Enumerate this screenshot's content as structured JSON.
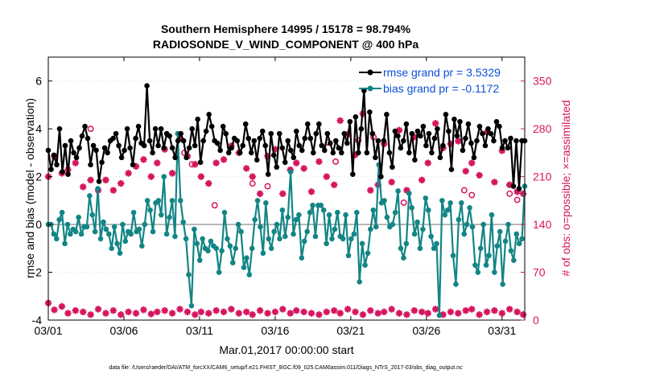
{
  "chart_data": {
    "type": "line",
    "title": "Southern Hemisphere 14995 / 15178 = 98.794%",
    "subtitle": "RADIOSONDE_V_WIND_COMPONENT @ 400 hPa",
    "xlabel": "Mar.01,2017 00:00:00 start",
    "ylabel": "rmse and bias (model - observation)",
    "y2label": "# of obs: o=possible; ×=assimilated",
    "footnote": "data file: /Users/raeder/DAI/ATM_forcXX/CAM6_setup/f.e21.FHIST_BGC.f09_025.CAM6assim.011/Diags_NTrS_2017-03/obs_diag_output.nc",
    "xlim": [
      0,
      31.5
    ],
    "ylim": [
      -4,
      7
    ],
    "y2lim": [
      0,
      385
    ],
    "xticks": [
      0,
      5,
      10,
      15,
      20,
      25,
      30
    ],
    "xtick_labels": [
      "03/01",
      "03/06",
      "03/11",
      "03/16",
      "03/21",
      "03/26",
      "03/31"
    ],
    "yticks": [
      -4,
      -2,
      0,
      2,
      4,
      6
    ],
    "ytick_labels": [
      "-4",
      "-2",
      "0",
      "2",
      "4",
      "6"
    ],
    "y2ticks": [
      0,
      70,
      140,
      210,
      280,
      350
    ],
    "y2tick_labels": [
      "0",
      "70",
      "140",
      "210",
      "280",
      "350"
    ],
    "legend_position": "top-right",
    "colors": {
      "rmse": "#000000",
      "bias": "#138585",
      "obs": "#d6155e",
      "zero_line": "#a0a0a0"
    },
    "series": [
      {
        "name": "rmse grand pr = 3.5329",
        "values": [
          3.1,
          2.3,
          2.9,
          2.5,
          4.0,
          2.2,
          3.3,
          2.1,
          3.5,
          3.0,
          2.8,
          3.2,
          3.7,
          4.1,
          3.6,
          2.5,
          3.3,
          3.1,
          1.8,
          2.6,
          3.2,
          3.0,
          3.5,
          3.6,
          3.8,
          3.3,
          2.8,
          3.1,
          4.0,
          3.2,
          2.5,
          3.6,
          4.1,
          3.4,
          3.3,
          5.8,
          3.5,
          3.0,
          4.0,
          3.3,
          4.0,
          3.2,
          3.8,
          3.7,
          3.2,
          2.8,
          3.5,
          3.8,
          3.5,
          2.8,
          3.2,
          4.0,
          3.3,
          4.4,
          2.6,
          3.5,
          3.9,
          4.6,
          4.1,
          3.5,
          3.4,
          3.1,
          4.1,
          3.8,
          3.0,
          3.2,
          3.6,
          3.5,
          3.0,
          3.3,
          4.2,
          3.6,
          3.0,
          3.5,
          2.7,
          3.6,
          3.9,
          3.3,
          2.1,
          3.8,
          2.9,
          2.4,
          3.8,
          3.2,
          2.6,
          3.5,
          3.1,
          2.8,
          3.9,
          3.3,
          3.1,
          3.6,
          4.2,
          3.6,
          3.0,
          3.8,
          4.2,
          3.3,
          3.1,
          3.8,
          3.4,
          3.0,
          3.5,
          3.2,
          3.0,
          3.8,
          3.4,
          4.3,
          2.1,
          4.5,
          3.0,
          4.0,
          5.6,
          3.0,
          4.7,
          3.8,
          2.8,
          3.5,
          2.0,
          3.5,
          4.6,
          3.0,
          2.4,
          3.9,
          3.7,
          3.2,
          3.5,
          4.2,
          3.0,
          3.8,
          2.7,
          3.9,
          3.7,
          4.1,
          3.3,
          3.8,
          3.0,
          3.6,
          4.0,
          2.8,
          3.3,
          4.6,
          3.9,
          2.3,
          4.4,
          3.7,
          4.3,
          3.1,
          3.6,
          4.2,
          3.4,
          2.8,
          3.5,
          4.1,
          3.8,
          3.3,
          4.0,
          3.8,
          3.5,
          4.3,
          4.1,
          3.2,
          3.5,
          3.2,
          3.6,
          1.6,
          3.5,
          1.5,
          3.5,
          3.5
        ]
      },
      {
        "name": "bias grand pr = -0.1172",
        "values": [
          0.0,
          0.0,
          -0.4,
          -0.6,
          0.2,
          0.5,
          -0.8,
          0.0,
          -0.4,
          -0.2,
          -0.3,
          0.3,
          -0.4,
          -0.1,
          -0.1,
          1.2,
          0.4,
          -0.3,
          1.5,
          -0.6,
          0.1,
          -0.2,
          -0.4,
          -1.0,
          -0.1,
          -0.8,
          -1.2,
          0.0,
          -0.7,
          -0.3,
          -0.4,
          0.5,
          -0.3,
          -0.2,
          -0.9,
          0.0,
          1.0,
          0.6,
          -0.3,
          0.9,
          1.0,
          0.4,
          2.0,
          -0.4,
          0.3,
          1.0,
          -0.5,
          3.8,
          1.0,
          0.1,
          -0.6,
          -2.1,
          -3.4,
          -0.2,
          -0.8,
          -1.5,
          -0.6,
          -1.0,
          -1.1,
          -0.7,
          -0.9,
          -1.0,
          -2.0,
          -1.1,
          0.5,
          -0.6,
          -0.9,
          -1.6,
          -1.0,
          0.0,
          -0.3,
          -1.8,
          -1.4,
          -2.1,
          -1.0,
          0.2,
          1.0,
          -0.1,
          -1.2,
          0.9,
          -0.6,
          -1.0,
          -0.3,
          0.0,
          -0.6,
          0.6,
          -0.5,
          0.3,
          2.2,
          -0.4,
          0.2,
          0.4,
          -1.4,
          -0.7,
          -0.3,
          0.5,
          0.8,
          -0.5,
          0.8,
          0.8,
          0.6,
          -0.8,
          0.4,
          -0.6,
          -0.2,
          0.5,
          -0.5,
          -0.6,
          0.4,
          -1.3,
          -0.6,
          -0.4,
          0.5,
          -2.4,
          -0.8,
          -1.7,
          -1.2,
          -0.2,
          0.6,
          -0.1,
          2.5,
          0.9,
          1.0,
          0.3,
          -0.1,
          0.0,
          0.5,
          1.4,
          -1.0,
          -1.4,
          -0.8,
          1.3,
          0.7,
          -0.4,
          0.1,
          -1.0,
          -0.2,
          1.1,
          0.6,
          -0.5,
          -1.0,
          -0.8,
          -3.8,
          1.0,
          0.4,
          0.6,
          0.9,
          -1.3,
          -2.5,
          0.2,
          0.9,
          -0.4,
          0.0,
          0.7,
          -0.1,
          -1.7,
          -2.0,
          -1.0,
          0.0,
          -1.7,
          -1.3,
          0.4,
          -2.0,
          -0.9,
          -0.3,
          -2.5,
          -0.7,
          0.0,
          -1.1,
          -1.5,
          -0.4,
          -0.8,
          -0.6,
          1.6
        ]
      }
    ],
    "obs_possible_series": {
      "x": [
        2.8,
        9.0,
        9.5,
        11.0,
        13.5,
        14.5,
        18.5,
        19.0,
        20.5,
        21.5,
        23.5,
        27.5,
        28.0,
        30.5,
        31.0
      ],
      "values": [
        280,
        245,
        228,
        168,
        200,
        196,
        260,
        232,
        263,
        268,
        172,
        190,
        183,
        185,
        176
      ]
    },
    "obs_assimilated_series": {
      "x": [
        0.0,
        0.4,
        0.9,
        1.3,
        1.8,
        2.3,
        2.8,
        3.3,
        3.8,
        4.3,
        4.8,
        5.3,
        5.8,
        6.3,
        6.8,
        7.2,
        7.7,
        8.2,
        8.7,
        9.2,
        9.7,
        10.1,
        10.6,
        11.1,
        11.6,
        12.1,
        12.6,
        13.1,
        13.5,
        14.0,
        14.5,
        15.0,
        15.5,
        16.0,
        16.4,
        16.9,
        17.4,
        17.9,
        18.4,
        18.9,
        19.3,
        19.8,
        20.3,
        20.8,
        21.3,
        21.8,
        22.2,
        22.7,
        23.2,
        23.7,
        24.2,
        24.7,
        25.1,
        25.6,
        26.1,
        26.6,
        27.1,
        27.6,
        28.0,
        28.5,
        29.0,
        29.5,
        30.0,
        30.5,
        31.0,
        31.4
      ],
      "values": [
        25,
        15,
        20,
        10,
        14,
        12,
        8,
        16,
        10,
        14,
        8,
        12,
        10,
        15,
        9,
        12,
        14,
        10,
        16,
        12,
        8,
        12,
        10,
        14,
        12,
        16,
        10,
        12,
        8,
        14,
        10,
        12,
        16,
        10,
        14,
        12,
        10,
        8,
        12,
        14,
        10,
        16,
        12,
        8,
        14,
        10,
        12,
        16,
        10,
        8,
        14,
        12,
        10,
        16,
        8,
        12,
        10,
        14,
        16,
        8,
        12,
        14,
        10,
        16,
        12,
        8
      ],
      "secondary_values": [
        210,
        240,
        215,
        220,
        230,
        195,
        205,
        190,
        205,
        190,
        200,
        215,
        225,
        235,
        210,
        230,
        250,
        215,
        265,
        240,
        228,
        210,
        200,
        230,
        235,
        255,
        245,
        222,
        210,
        185,
        240,
        250,
        185,
        220,
        230,
        222,
        188,
        232,
        210,
        198,
        292,
        272,
        242,
        302,
        190,
        198,
        258,
        202,
        278,
        190,
        268,
        205,
        230,
        288,
        252,
        258,
        262,
        218,
        230,
        212,
        275,
        202,
        248,
        198,
        188,
        185
      ]
    }
  }
}
